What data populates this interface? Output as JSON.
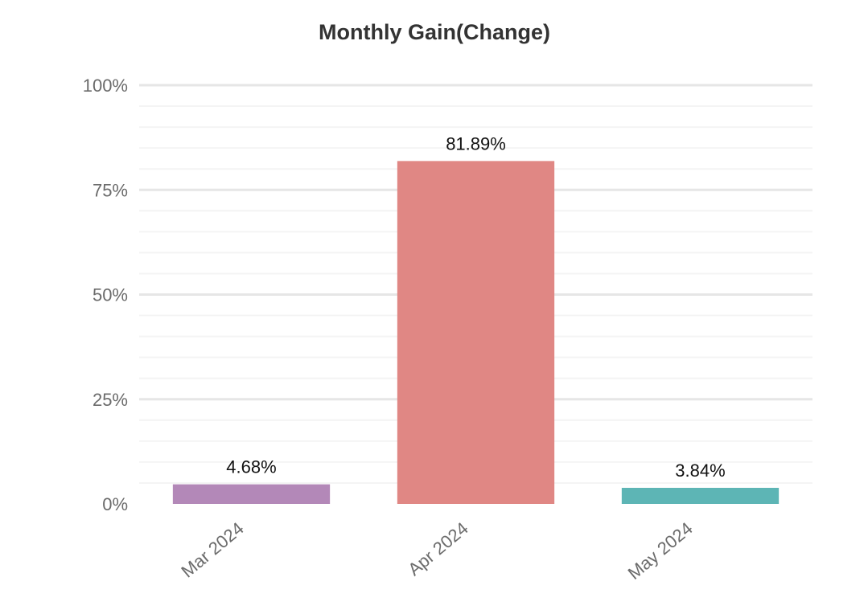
{
  "chart_data": {
    "type": "bar",
    "title": "Monthly Gain(Change)",
    "xlabel": "",
    "ylabel": "",
    "categories": [
      "Mar 2024",
      "Apr 2024",
      "May 2024"
    ],
    "values": [
      4.68,
      81.89,
      3.84
    ],
    "value_labels": [
      "4.68%",
      "81.89%",
      "3.84%"
    ],
    "colors": [
      "#b388b8",
      "#e08784",
      "#5db5b5"
    ],
    "ylim": [
      0,
      100
    ],
    "y_ticks": [
      0,
      25,
      50,
      75,
      100
    ],
    "y_tick_labels": [
      "0%",
      "25%",
      "50%",
      "75%",
      "100%"
    ],
    "grid": true,
    "legend": "none"
  }
}
